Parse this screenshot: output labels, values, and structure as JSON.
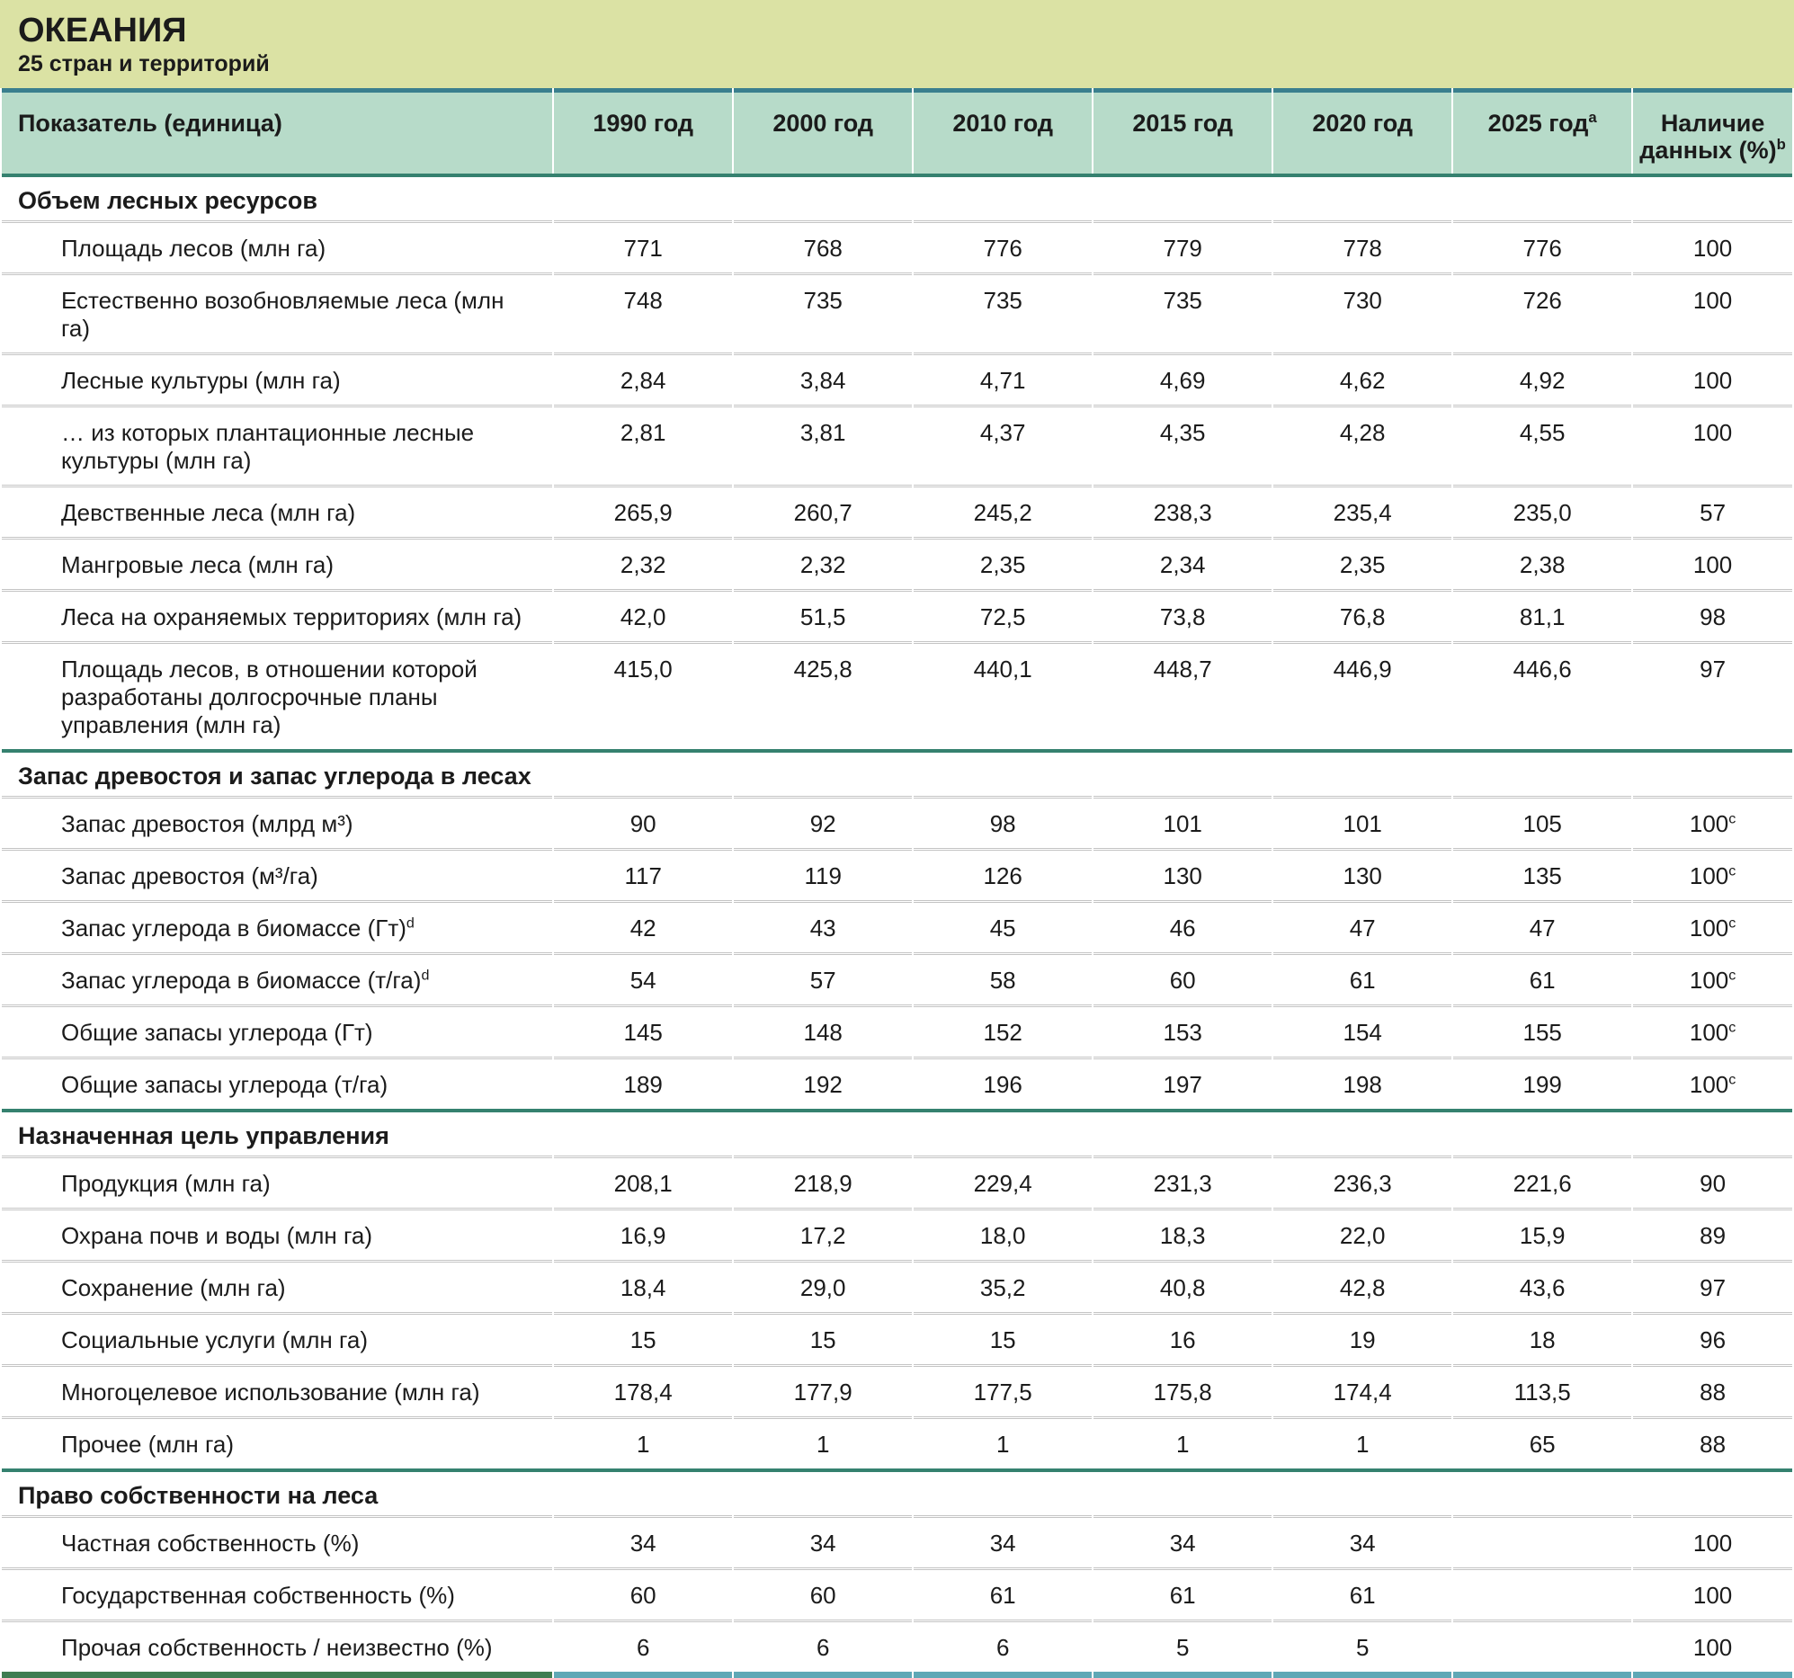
{
  "header": {
    "title": "ОКЕАНИЯ",
    "subtitle": "25 стран и территорий"
  },
  "table": {
    "columns": [
      {
        "label": "Показатель (единица)",
        "sup": ""
      },
      {
        "label": "1990 год",
        "sup": ""
      },
      {
        "label": "2000 год",
        "sup": ""
      },
      {
        "label": "2010 год",
        "sup": ""
      },
      {
        "label": "2015 год",
        "sup": ""
      },
      {
        "label": "2020 год",
        "sup": ""
      },
      {
        "label": "2025 год",
        "sup": "a"
      },
      {
        "label": "Наличие данных (%)",
        "sup": "b"
      }
    ],
    "sections": [
      {
        "title": "Объем лесных ресурсов",
        "rows": [
          {
            "label": "Площадь лесов (млн га)",
            "values": [
              "771",
              "768",
              "776",
              "779",
              "778",
              "776"
            ],
            "availability": "100"
          },
          {
            "label": "Естественно возобновляемые леса (млн га)",
            "values": [
              "748",
              "735",
              "735",
              "735",
              "730",
              "726"
            ],
            "availability": "100"
          },
          {
            "label": "Лесные культуры (млн га)",
            "values": [
              "2,84",
              "3,84",
              "4,71",
              "4,69",
              "4,62",
              "4,92"
            ],
            "availability": "100"
          },
          {
            "label": "… из которых плантационные лесные культуры (млн га)",
            "values": [
              "2,81",
              "3,81",
              "4,37",
              "4,35",
              "4,28",
              "4,55"
            ],
            "availability": "100"
          },
          {
            "label": "Девственные леса (млн га)",
            "values": [
              "265,9",
              "260,7",
              "245,2",
              "238,3",
              "235,4",
              "235,0"
            ],
            "availability": "57"
          },
          {
            "label": "Мангровые леса (млн га)",
            "values": [
              "2,32",
              "2,32",
              "2,35",
              "2,34",
              "2,35",
              "2,38"
            ],
            "availability": "100"
          },
          {
            "label": "Леса на охраняемых территориях (млн га)",
            "values": [
              "42,0",
              "51,5",
              "72,5",
              "73,8",
              "76,8",
              "81,1"
            ],
            "availability": "98"
          },
          {
            "label": "Площадь лесов, в отношении которой разработаны долгосрочные планы управления (млн га)",
            "values": [
              "415,0",
              "425,8",
              "440,1",
              "448,7",
              "446,9",
              "446,6"
            ],
            "availability": "97"
          }
        ]
      },
      {
        "title": "Запас древостоя и запас углерода в лесах",
        "rows": [
          {
            "label": "Запас древостоя (млрд м³)",
            "values": [
              "90",
              "92",
              "98",
              "101",
              "101",
              "105"
            ],
            "availability": "100",
            "availability_sup": "c"
          },
          {
            "label": "Запас древостоя (м³/га)",
            "values": [
              "117",
              "119",
              "126",
              "130",
              "130",
              "135"
            ],
            "availability": "100",
            "availability_sup": "c"
          },
          {
            "label": "Запас углерода в биомассе (Гт)",
            "label_sup": "d",
            "values": [
              "42",
              "43",
              "45",
              "46",
              "47",
              "47"
            ],
            "availability": "100",
            "availability_sup": "c"
          },
          {
            "label": "Запас углерода в биомассе (т/га)",
            "label_sup": "d",
            "values": [
              "54",
              "57",
              "58",
              "60",
              "61",
              "61"
            ],
            "availability": "100",
            "availability_sup": "c"
          },
          {
            "label": "Общие запасы углерода (Гт)",
            "values": [
              "145",
              "148",
              "152",
              "153",
              "154",
              "155"
            ],
            "availability": "100",
            "availability_sup": "c"
          },
          {
            "label": "Общие запасы углерода (т/га)",
            "values": [
              "189",
              "192",
              "196",
              "197",
              "198",
              "199"
            ],
            "availability": "100",
            "availability_sup": "c"
          }
        ]
      },
      {
        "title": "Назначенная цель управления",
        "rows": [
          {
            "label": "Продукция (млн га)",
            "values": [
              "208,1",
              "218,9",
              "229,4",
              "231,3",
              "236,3",
              "221,6"
            ],
            "availability": "90"
          },
          {
            "label": "Охрана почв и воды (млн га)",
            "values": [
              "16,9",
              "17,2",
              "18,0",
              "18,3",
              "22,0",
              "15,9"
            ],
            "availability": "89"
          },
          {
            "label": "Сохранение (млн га)",
            "values": [
              "18,4",
              "29,0",
              "35,2",
              "40,8",
              "42,8",
              "43,6"
            ],
            "availability": "97"
          },
          {
            "label": "Социальные услуги (млн га)",
            "values": [
              "15",
              "15",
              "15",
              "16",
              "19",
              "18"
            ],
            "availability": "96"
          },
          {
            "label": "Многоцелевое использование (млн га)",
            "values": [
              "178,4",
              "177,9",
              "177,5",
              "175,8",
              "174,4",
              "113,5"
            ],
            "availability": "88"
          },
          {
            "label": "Прочее (млн га)",
            "values": [
              "1",
              "1",
              "1",
              "1",
              "1",
              "65"
            ],
            "availability": "88"
          }
        ]
      },
      {
        "title": "Право собственности на леса",
        "rows": [
          {
            "label": "Частная собственность (%)",
            "values": [
              "34",
              "34",
              "34",
              "34",
              "34",
              ""
            ],
            "availability": "100"
          },
          {
            "label": "Государственная собственность (%)",
            "values": [
              "60",
              "60",
              "61",
              "61",
              "61",
              ""
            ],
            "availability": "100"
          },
          {
            "label": "Прочая собственность / неизвестно (%)",
            "values": [
              "6",
              "6",
              "6",
              "5",
              "5",
              ""
            ],
            "availability": "100"
          }
        ]
      }
    ]
  },
  "colors": {
    "title_band": "#dbe2a4",
    "header_band": "#b7dbc9",
    "header_top_rule": "#3a7f8e",
    "section_rule": "#35816f",
    "row_separator": "#c4c4c4",
    "bottom_rule_left": "#3f7d52",
    "bottom_rule_right": "#5fa8b6"
  }
}
